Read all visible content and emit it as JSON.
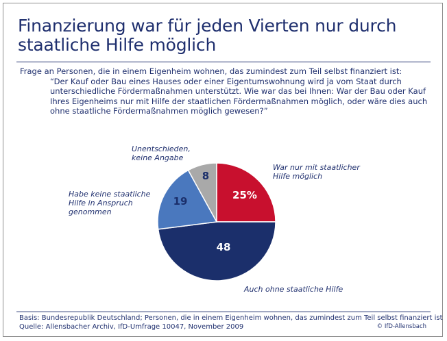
{
  "header": {
    "title_line1": "Finanzierung war für jeden Vierten nur durch",
    "title_line2": "staatliche Hilfe möglich"
  },
  "question": {
    "intro": "Frage an Personen, die in einem Eigenheim wohnen, das zumindest zum Teil selbst finanziert ist:",
    "text": "“Der Kauf oder Bau eines Hauses oder einer Eigentumswohnung wird ja vom Staat durch unterschiedliche Fördermaßnahmen unterstützt. Wie war das bei Ihnen: War der Bau oder Kauf Ihres Eigenheims nur mit Hilfe der staatlichen Fördermaßnahmen möglich, oder wäre dies auch ohne staatliche Fördermaßnahmen möglich gewesen?”"
  },
  "chart_data": {
    "type": "pie",
    "slices": [
      {
        "label_lines": [
          "War nur mit staatlicher",
          "Hilfe möglich"
        ],
        "value": 25,
        "display": "25%",
        "color": "#c8102e",
        "text_color": "#ffffff"
      },
      {
        "label_lines": [
          "Auch ohne staatliche Hilfe"
        ],
        "value": 48,
        "display": "48",
        "color": "#1b2f6b",
        "text_color": "#ffffff"
      },
      {
        "label_lines": [
          "Habe keine staatliche",
          "Hilfe in Anspruch",
          "genommen"
        ],
        "value": 19,
        "display": "19",
        "color": "#4a78be",
        "text_color": "#1b2f6b"
      },
      {
        "label_lines": [
          "Unentschieden,",
          "keine Angabe"
        ],
        "value": 8,
        "display": "8",
        "color": "#a9a9a9",
        "text_color": "#1b2f6b"
      }
    ]
  },
  "footer": {
    "basis": "Basis: Bundesrepublik Deutschland; Personen, die in einem Eigenheim wohnen, das zumindest zum Teil selbst finanziert ist",
    "source": "Quelle: Allensbacher Archiv, IfD-Umfrage 10047, November 2009",
    "copyright": "© IfD-Allensbach"
  }
}
